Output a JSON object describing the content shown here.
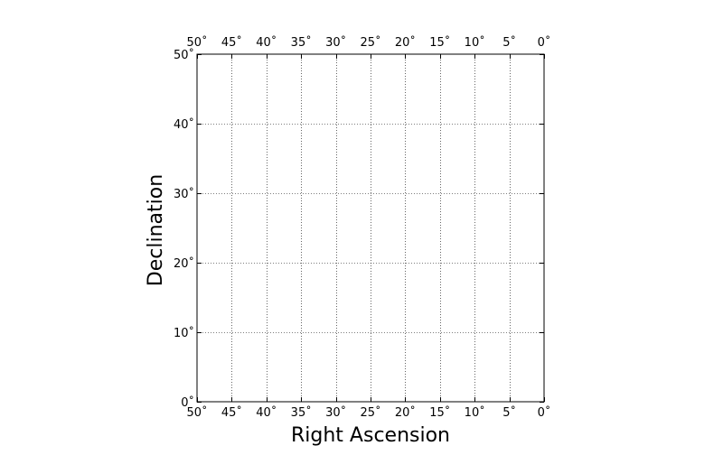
{
  "chart_data": {
    "type": "scatter",
    "title": "",
    "xlabel": "Right Ascension",
    "ylabel": "Declination",
    "xlim": [
      50,
      0
    ],
    "ylim": [
      0,
      50
    ],
    "x_ticks": [
      50,
      45,
      40,
      35,
      30,
      25,
      20,
      15,
      10,
      5,
      0
    ],
    "y_ticks": [
      0,
      10,
      20,
      30,
      40,
      50
    ],
    "x_tick_labels": [
      "50˚",
      "45˚",
      "40˚",
      "35˚",
      "30˚",
      "25˚",
      "20˚",
      "15˚",
      "10˚",
      "5˚",
      "0˚"
    ],
    "y_tick_labels": [
      "0˚",
      "10˚",
      "20˚",
      "30˚",
      "40˚",
      "50˚"
    ],
    "x_tick_labels_top": true,
    "grid": true,
    "grid_style": "dotted",
    "series": []
  },
  "colors": {
    "axes": "#000000",
    "grid": "#000000",
    "background": "#ffffff"
  }
}
